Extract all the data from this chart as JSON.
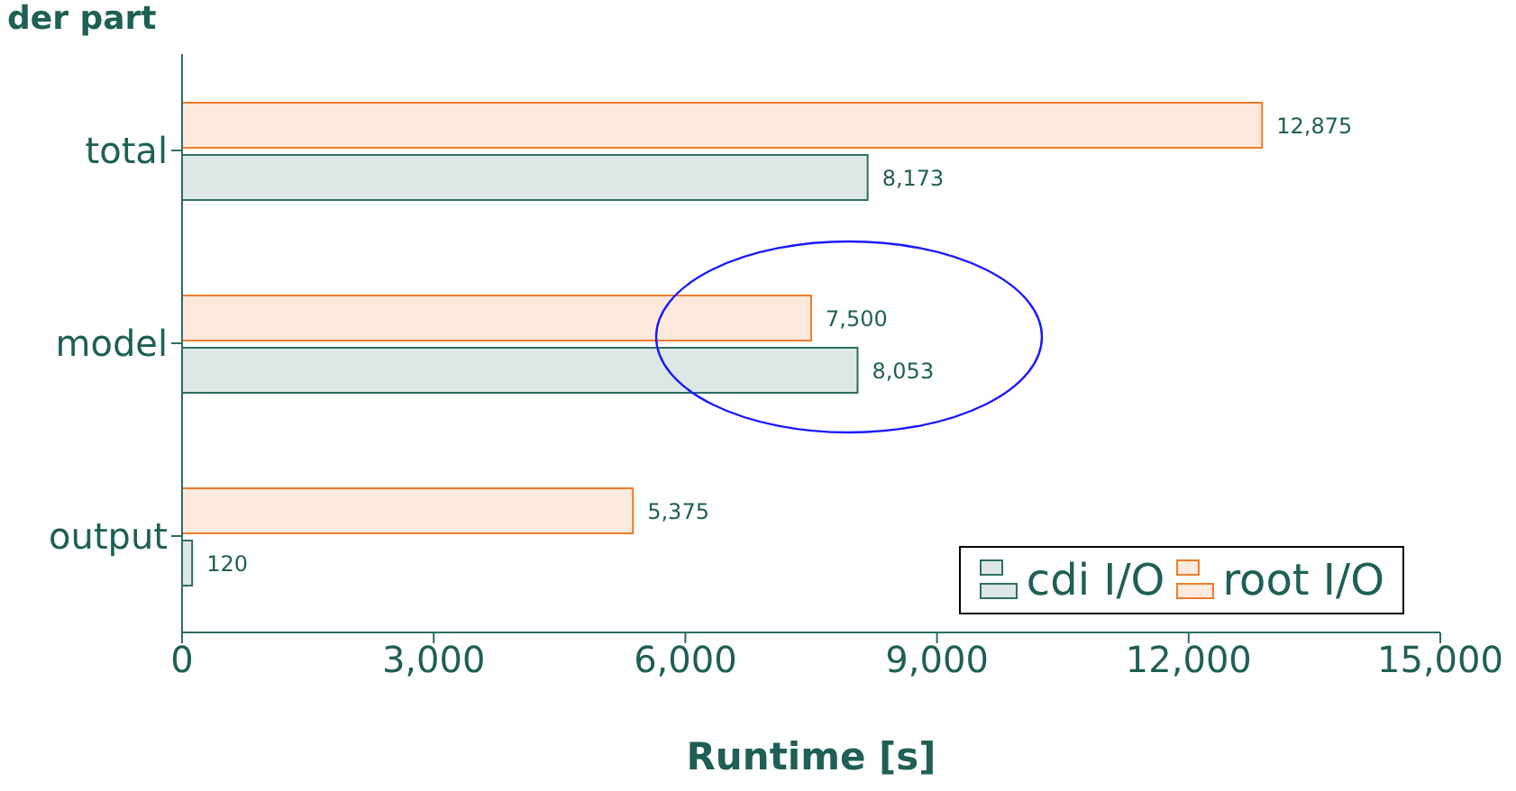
{
  "chart_data": {
    "type": "bar",
    "orientation": "horizontal",
    "title": "der part",
    "xlabel": "Runtime [s]",
    "categories": [
      "total",
      "model",
      "output"
    ],
    "series": [
      {
        "name": "cdi I/O",
        "color": "#2e6e62",
        "values": [
          8173,
          8053,
          120
        ],
        "value_labels": [
          "8,173",
          "8,053",
          "120"
        ]
      },
      {
        "name": "root I/O",
        "color": "#f07c2c",
        "values": [
          12875,
          7500,
          5375
        ],
        "value_labels": [
          "12,875",
          "7,500",
          "5,375"
        ]
      }
    ],
    "xlim": [
      0,
      15000
    ],
    "xticks": [
      {
        "value": 0,
        "label": "0"
      },
      {
        "value": 3000,
        "label": "3,000"
      },
      {
        "value": 6000,
        "label": "6,000"
      },
      {
        "value": 9000,
        "label": "9,000"
      },
      {
        "value": 12000,
        "label": "12,000"
      },
      {
        "value": 15000,
        "label": "15,000"
      }
    ],
    "legend": "bottom right"
  }
}
